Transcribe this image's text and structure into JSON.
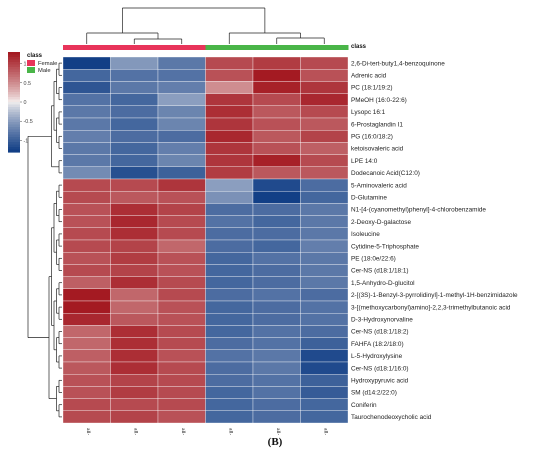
{
  "panel_label": "(B)",
  "chart_data": {
    "type": "heatmap",
    "columns": [
      "all-VE 11-3",
      "all-VE 11-4",
      "all-VE 11-6",
      "all-VE 11-2",
      "all-VE 11-1",
      "all-VE 11-5"
    ],
    "column_class": [
      "Female",
      "Female",
      "Female",
      "Male",
      "Male",
      "Male"
    ],
    "class_annotation_title": "class",
    "legend": {
      "title": "class",
      "entries": [
        {
          "label": "Female",
          "color": "#e8345a"
        },
        {
          "label": "Male",
          "color": "#49b548"
        }
      ]
    },
    "color_scale": {
      "ticks": [
        1,
        0.5,
        0,
        -0.5,
        -1
      ],
      "min": -1.3,
      "max": 1.3,
      "low_color": "#123f86",
      "mid_color": "#f5f1f0",
      "high_color": "#a41a22"
    },
    "rows": [
      {
        "name": "2,6-Di-tert-buty1,4-benzoquinone",
        "values": [
          -1.3,
          -0.55,
          -0.8,
          0.95,
          1.05,
          0.95
        ]
      },
      {
        "name": "Adrenic acid",
        "values": [
          -0.95,
          -0.85,
          -0.85,
          0.9,
          1.3,
          0.9
        ]
      },
      {
        "name": "PC (18:1/19:2)",
        "values": [
          -1.1,
          -0.8,
          -0.75,
          0.5,
          1.25,
          1.1
        ]
      },
      {
        "name": "PMeOH (16:0-22:6)",
        "values": [
          -0.85,
          -0.95,
          -0.5,
          1.1,
          0.95,
          1.2
        ]
      },
      {
        "name": "Lysopc 16:1",
        "values": [
          -0.8,
          -0.9,
          -0.7,
          1.15,
          0.85,
          0.95
        ]
      },
      {
        "name": "6-Prostaglandin I1",
        "values": [
          -0.8,
          -0.95,
          -0.7,
          1.1,
          0.9,
          0.85
        ]
      },
      {
        "name": "PG (16:0/18:2)",
        "values": [
          -0.75,
          -0.9,
          -0.9,
          1.2,
          0.85,
          1.0
        ]
      },
      {
        "name": "ketoisovaleric acid",
        "values": [
          -0.8,
          -0.95,
          -0.75,
          1.1,
          0.9,
          0.8
        ]
      },
      {
        "name": "LPE 14:0",
        "values": [
          -0.8,
          -0.95,
          -0.7,
          1.1,
          1.25,
          0.95
        ]
      },
      {
        "name": "Dodecanoic Acid(C12:0)",
        "values": [
          -0.65,
          -1.15,
          -1.0,
          1.05,
          0.85,
          0.85
        ]
      },
      {
        "name": "5-Aminovaleric acid",
        "values": [
          0.95,
          0.95,
          1.1,
          -0.5,
          -1.2,
          -0.9
        ]
      },
      {
        "name": "D-Glutamine",
        "values": [
          0.95,
          0.85,
          0.9,
          -0.6,
          -1.3,
          -0.95
        ]
      },
      {
        "name": "N1-[4-(cyanomethyl)phenyl]-4-chlorobenzamide",
        "values": [
          0.9,
          1.15,
          1.0,
          -0.9,
          -0.9,
          -0.8
        ]
      },
      {
        "name": "2-Deoxy-D-galactose",
        "values": [
          0.9,
          1.2,
          0.95,
          -0.85,
          -0.95,
          -0.8
        ]
      },
      {
        "name": "Isoleucine",
        "values": [
          0.95,
          1.15,
          0.95,
          -0.9,
          -0.9,
          -0.8
        ]
      },
      {
        "name": "Cytidine-5-Triphosphate",
        "values": [
          0.95,
          1.0,
          0.75,
          -0.9,
          -0.95,
          -0.75
        ]
      },
      {
        "name": "PE (18:0e/22:6)",
        "values": [
          0.9,
          1.05,
          0.9,
          -0.95,
          -0.85,
          -0.8
        ]
      },
      {
        "name": "Cer-NS (d18:1/18:1)",
        "values": [
          0.95,
          1.0,
          0.9,
          -0.95,
          -0.9,
          -0.8
        ]
      },
      {
        "name": "1,5-Anhydro-D-glucitol",
        "values": [
          0.8,
          1.15,
          0.95,
          -0.95,
          -0.9,
          -0.8
        ]
      },
      {
        "name": "2-[(3S)-1-Benzyl-3-pyrrolidinyl]-1-methyl-1H-benzimidazole",
        "values": [
          1.3,
          0.75,
          0.95,
          -0.9,
          -0.85,
          -0.9
        ]
      },
      {
        "name": "3-[(methoxycarbonyl)amino]-2,2,3-trimethylbutanoic acid",
        "values": [
          1.3,
          0.75,
          0.9,
          -0.95,
          -0.9,
          -0.85
        ]
      },
      {
        "name": "D-3-Hydroxynorvaline",
        "values": [
          1.2,
          0.85,
          0.9,
          -0.95,
          -0.9,
          -0.85
        ]
      },
      {
        "name": "Cer-NS (d18:1/18:2)",
        "values": [
          0.75,
          1.15,
          0.95,
          -0.95,
          -0.85,
          -0.9
        ]
      },
      {
        "name": "FAHFA (18:2/18:0)",
        "values": [
          0.75,
          1.15,
          0.95,
          -0.9,
          -0.85,
          -1.0
        ]
      },
      {
        "name": "L-5-Hydroxylysine",
        "values": [
          0.8,
          1.15,
          0.9,
          -0.85,
          -0.8,
          -1.2
        ]
      },
      {
        "name": "Cer-NS (d18:1/16:0)",
        "values": [
          0.85,
          1.15,
          0.95,
          -0.9,
          -0.8,
          -1.2
        ]
      },
      {
        "name": "Hydroxypyruvic acid",
        "values": [
          0.9,
          1.0,
          0.95,
          -0.9,
          -0.85,
          -1.0
        ]
      },
      {
        "name": "SM (d14:2/22:0)",
        "values": [
          0.9,
          1.05,
          0.95,
          -0.95,
          -0.85,
          -1.05
        ]
      },
      {
        "name": "Coniferin",
        "values": [
          0.95,
          0.95,
          0.95,
          -0.95,
          -0.9,
          -0.95
        ]
      },
      {
        "name": "Taurochenodeoxycholic acid",
        "values": [
          0.95,
          1.0,
          0.9,
          -0.95,
          -0.9,
          -0.95
        ]
      }
    ]
  }
}
